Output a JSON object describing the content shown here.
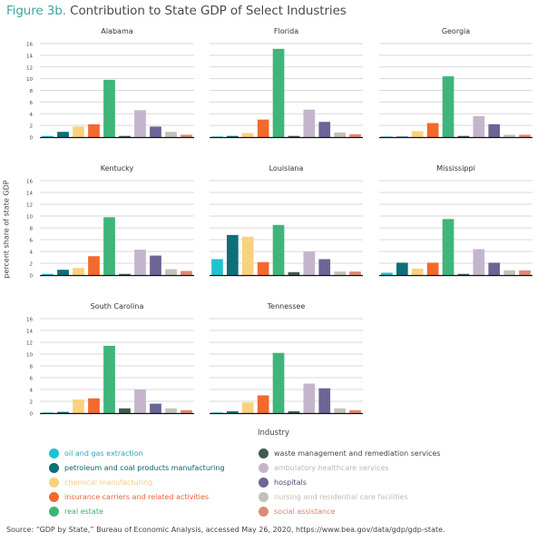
{
  "header": {
    "figure_label": "Figure 3b.",
    "title": "Contribution to State GDP of Select Industries"
  },
  "chart_data": {
    "type": "bar",
    "title": "Figure 3b. Contribution to State GDP of Select Industries",
    "xlabel": "Industry",
    "ylabel": "percent share of state GDP",
    "ylim": [
      0,
      16
    ],
    "yticks": [
      "0",
      "2",
      "4",
      "6",
      "8",
      "10",
      "12",
      "14",
      "16"
    ],
    "grid": true,
    "legend_position": "bottom",
    "categories": [
      "oil and gas extraction",
      "petroleum and coal products manufacturing",
      "chemical manufacturing",
      "insurance carriers and related activities",
      "real estate",
      "waste management and remediation services",
      "ambulatory healthcare services",
      "hospitals",
      "nursing and residential care facilities",
      "social assistance"
    ],
    "colors": [
      "#1fc3cf",
      "#0d6f78",
      "#f9d27e",
      "#f26a2e",
      "#3fb57a",
      "#3f5b4f",
      "#c4b5cc",
      "#6c6595",
      "#c2c2bc",
      "#dd8a74"
    ],
    "legend_text_colors": [
      "#2aaab5",
      "#0f5f66",
      "#f5cc80",
      "#e8653a",
      "#3aae74",
      "#3c4a44",
      "#bdb2c5",
      "#4e4a78",
      "#bdbdb7",
      "#d9826c"
    ],
    "panels": [
      {
        "state": "Alabama",
        "values": [
          0.2,
          0.9,
          1.8,
          2.2,
          9.8,
          0.2,
          4.6,
          1.8,
          0.9,
          0.4
        ]
      },
      {
        "state": "Florida",
        "values": [
          0.05,
          0.2,
          0.7,
          3.0,
          15.1,
          0.2,
          4.7,
          2.6,
          0.8,
          0.5
        ]
      },
      {
        "state": "Georgia",
        "values": [
          0.0,
          0.05,
          1.0,
          2.4,
          10.4,
          0.2,
          3.6,
          2.2,
          0.4,
          0.4
        ]
      },
      {
        "state": "Kentucky",
        "values": [
          0.2,
          0.9,
          1.2,
          3.2,
          9.8,
          0.2,
          4.3,
          3.3,
          1.0,
          0.7
        ]
      },
      {
        "state": "Louisiana",
        "values": [
          2.7,
          6.8,
          6.5,
          2.2,
          8.5,
          0.5,
          4.0,
          2.7,
          0.6,
          0.6
        ]
      },
      {
        "state": "Mississippi",
        "values": [
          0.4,
          2.1,
          1.1,
          2.1,
          9.5,
          0.2,
          4.4,
          2.1,
          0.8,
          0.8
        ]
      },
      {
        "state": "South Carolina",
        "values": [
          0.1,
          0.2,
          2.3,
          2.5,
          11.4,
          0.8,
          4.0,
          1.6,
          0.8,
          0.5
        ]
      },
      {
        "state": "Tennessee",
        "values": [
          0.1,
          0.3,
          1.8,
          3.0,
          10.2,
          0.3,
          5.0,
          4.2,
          0.8,
          0.5
        ]
      }
    ]
  },
  "footer": {
    "source": "Source: “GDP by State,” Bureau of Economic Analysis, accessed May 26, 2020, https://www.bea.gov/data/gdp/gdp-state."
  }
}
